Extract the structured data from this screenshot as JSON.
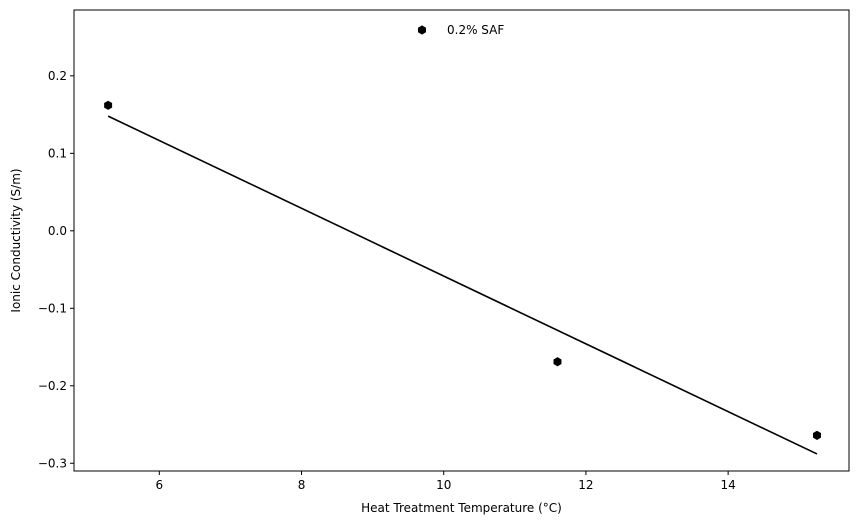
{
  "chart_data": {
    "type": "scatter",
    "xlabel": "Heat Treatment Temperature (°C)",
    "ylabel": "Ionic Conductivity (S/m)",
    "xlim": [
      4.8,
      15.7
    ],
    "ylim": [
      -0.31,
      0.285
    ],
    "xticks": [
      6,
      8,
      10,
      12,
      14
    ],
    "xtick_labels": [
      "6",
      "8",
      "10",
      "12",
      "14"
    ],
    "yticks": [
      -0.3,
      -0.2,
      -0.1,
      0.0,
      0.1,
      0.2
    ],
    "ytick_labels": [
      "−0.3",
      "−0.2",
      "−0.1",
      "0.0",
      "0.1",
      "0.2"
    ],
    "grid": false,
    "legend_position": "top-center",
    "series": [
      {
        "name": "0.2% SAF",
        "marker": "hexagon",
        "color": "#000000",
        "points": [
          {
            "x": 5.28,
            "y": 0.162
          },
          {
            "x": 11.6,
            "y": -0.169
          },
          {
            "x": 15.25,
            "y": -0.264
          }
        ]
      }
    ],
    "fit_line": {
      "color": "#000000",
      "points": [
        {
          "x": 5.28,
          "y": 0.148
        },
        {
          "x": 15.25,
          "y": -0.288
        }
      ]
    }
  }
}
